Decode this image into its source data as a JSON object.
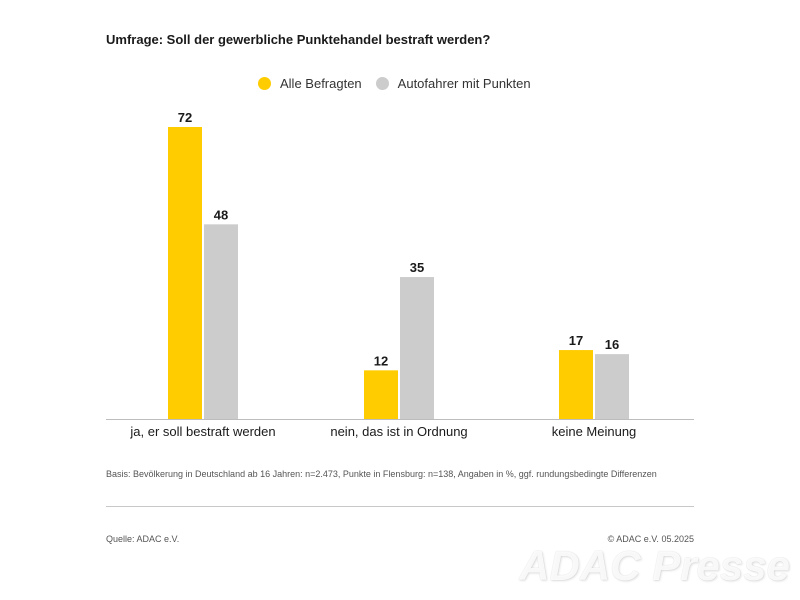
{
  "header": {
    "title": "Umfrage: Soll der gewerbliche Punktehandel bestraft werden?"
  },
  "legend": [
    {
      "label": "Alle Befragten",
      "color": "#ffcc00"
    },
    {
      "label": "Autofahrer mit Punkten",
      "color": "#cccccc"
    }
  ],
  "chart_data": {
    "type": "bar",
    "title": "Umfrage: Soll der gewerbliche Punktehandel bestraft werden?",
    "xlabel": "",
    "ylabel": "",
    "ylim": [
      0,
      72
    ],
    "grid": false,
    "legend_position": "top-center",
    "categories": [
      "ja, er soll bestraft werden",
      "nein, das ist in Ordnung",
      "keine Meinung"
    ],
    "series": [
      {
        "name": "Alle Befragten",
        "values": [
          72,
          12,
          17
        ],
        "color": "#ffcc00"
      },
      {
        "name": "Autofahrer mit Punkten",
        "values": [
          48,
          35,
          16
        ],
        "color": "#cccccc"
      }
    ]
  },
  "footer": {
    "note": "Basis: Bevölkerung in Deutschland ab 16 Jahren: n=2.473, Punkte in Flensburg: n=138, Angaben in %, ggf. rundungsbedingte Differenzen",
    "source": "Quelle: ADAC e.V.",
    "copyright_prefix": "© ADAC e.V.",
    "date": "05.2025",
    "watermark": "ADAC Presse"
  }
}
